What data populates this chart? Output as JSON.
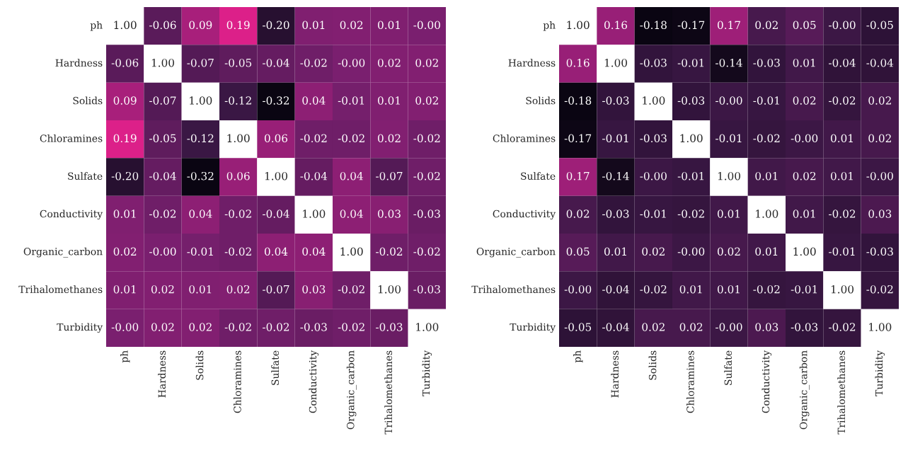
{
  "chart_data": [
    {
      "type": "heatmap",
      "data_labels": true,
      "categories": [
        "ph",
        "Hardness",
        "Solids",
        "Chloramines",
        "Sulfate",
        "Conductivity",
        "Organic_carbon",
        "Trihalomethanes",
        "Turbidity"
      ],
      "y_categories": [
        "ph",
        "Hardness",
        "Solids",
        "Chloramines",
        "Sulfate",
        "Conductivity",
        "Organic_carbon",
        "Trihalomethanes",
        "Turbidity"
      ],
      "cells": [
        [
          1.0,
          -0.06,
          0.09,
          0.19,
          -0.2,
          0.01,
          0.02,
          0.01,
          -0.0
        ],
        [
          -0.06,
          1.0,
          -0.07,
          -0.05,
          -0.04,
          -0.02,
          -0.0,
          0.02,
          0.02
        ],
        [
          0.09,
          -0.07,
          1.0,
          -0.12,
          -0.32,
          0.04,
          -0.01,
          0.01,
          0.02
        ],
        [
          0.19,
          -0.05,
          -0.12,
          1.0,
          0.06,
          -0.02,
          -0.02,
          0.02,
          -0.02
        ],
        [
          -0.2,
          -0.04,
          -0.32,
          0.06,
          1.0,
          -0.04,
          0.04,
          -0.07,
          -0.02
        ],
        [
          0.01,
          -0.02,
          0.04,
          -0.02,
          -0.04,
          1.0,
          0.04,
          0.03,
          -0.03
        ],
        [
          0.02,
          -0.0,
          -0.01,
          -0.02,
          0.04,
          0.04,
          1.0,
          -0.02,
          -0.02
        ],
        [
          0.01,
          0.02,
          0.01,
          0.02,
          -0.07,
          0.03,
          -0.02,
          1.0,
          -0.03
        ],
        [
          -0.0,
          0.02,
          0.02,
          -0.02,
          -0.02,
          -0.03,
          -0.02,
          -0.03,
          1.0
        ]
      ],
      "cell_labels": [
        [
          "1.00",
          "-0.06",
          "0.09",
          "0.19",
          "-0.20",
          "0.01",
          "0.02",
          "0.01",
          "-0.00"
        ],
        [
          "-0.06",
          "1.00",
          "-0.07",
          "-0.05",
          "-0.04",
          "-0.02",
          "-0.00",
          "0.02",
          "0.02"
        ],
        [
          "0.09",
          "-0.07",
          "1.00",
          "-0.12",
          "-0.32",
          "0.04",
          "-0.01",
          "0.01",
          "0.02"
        ],
        [
          "0.19",
          "-0.05",
          "-0.12",
          "1.00",
          "0.06",
          "-0.02",
          "-0.02",
          "0.02",
          "-0.02"
        ],
        [
          "-0.20",
          "-0.04",
          "-0.32",
          "0.06",
          "1.00",
          "-0.04",
          "0.04",
          "-0.07",
          "-0.02"
        ],
        [
          "0.01",
          "-0.02",
          "0.04",
          "-0.02",
          "-0.04",
          "1.00",
          "0.04",
          "0.03",
          "-0.03"
        ],
        [
          "0.02",
          "-0.00",
          "-0.01",
          "-0.02",
          "0.04",
          "0.04",
          "1.00",
          "-0.02",
          "-0.02"
        ],
        [
          "0.01",
          "0.02",
          "0.01",
          "0.02",
          "-0.07",
          "0.03",
          "-0.02",
          "1.00",
          "-0.03"
        ],
        [
          "-0.00",
          "0.02",
          "0.02",
          "-0.02",
          "-0.02",
          "-0.03",
          "-0.02",
          "-0.03",
          "1.00"
        ]
      ]
    },
    {
      "type": "heatmap",
      "data_labels": true,
      "categories": [
        "ph",
        "Hardness",
        "Solids",
        "Chloramines",
        "Sulfate",
        "Conductivity",
        "Organic_carbon",
        "Trihalomethanes",
        "Turbidity"
      ],
      "y_categories": [
        "ph",
        "Hardness",
        "Solids",
        "Chloramines",
        "Sulfate",
        "Conductivity",
        "Organic_carbon",
        "Trihalomethanes",
        "Turbidity"
      ],
      "cells": [
        [
          1.0,
          0.16,
          -0.18,
          -0.17,
          0.17,
          0.02,
          0.05,
          -0.0,
          -0.05
        ],
        [
          0.16,
          1.0,
          -0.03,
          -0.01,
          -0.14,
          -0.03,
          0.01,
          -0.04,
          -0.04
        ],
        [
          -0.18,
          -0.03,
          1.0,
          -0.03,
          -0.0,
          -0.01,
          0.02,
          -0.02,
          0.02
        ],
        [
          -0.17,
          -0.01,
          -0.03,
          1.0,
          -0.01,
          -0.02,
          -0.0,
          0.01,
          0.02
        ],
        [
          0.17,
          -0.14,
          -0.0,
          -0.01,
          1.0,
          0.01,
          0.02,
          0.01,
          -0.0
        ],
        [
          0.02,
          -0.03,
          -0.01,
          -0.02,
          0.01,
          1.0,
          0.01,
          -0.02,
          0.03
        ],
        [
          0.05,
          0.01,
          0.02,
          -0.0,
          0.02,
          0.01,
          1.0,
          -0.01,
          -0.03
        ],
        [
          -0.0,
          -0.04,
          -0.02,
          0.01,
          0.01,
          -0.02,
          -0.01,
          1.0,
          -0.02
        ],
        [
          -0.05,
          -0.04,
          0.02,
          0.02,
          -0.0,
          0.03,
          -0.03,
          -0.02,
          1.0
        ]
      ],
      "cell_labels": [
        [
          "1.00",
          "0.16",
          "-0.18",
          "-0.17",
          "0.17",
          "0.02",
          "0.05",
          "-0.00",
          "-0.05"
        ],
        [
          "0.16",
          "1.00",
          "-0.03",
          "-0.01",
          "-0.14",
          "-0.03",
          "0.01",
          "-0.04",
          "-0.04"
        ],
        [
          "-0.18",
          "-0.03",
          "1.00",
          "-0.03",
          "-0.00",
          "-0.01",
          "0.02",
          "-0.02",
          "0.02"
        ],
        [
          "-0.17",
          "-0.01",
          "-0.03",
          "1.00",
          "-0.01",
          "-0.02",
          "-0.00",
          "0.01",
          "0.02"
        ],
        [
          "0.17",
          "-0.14",
          "-0.00",
          "-0.01",
          "1.00",
          "0.01",
          "0.02",
          "0.01",
          "-0.00"
        ],
        [
          "0.02",
          "-0.03",
          "-0.01",
          "-0.02",
          "0.01",
          "1.00",
          "0.01",
          "-0.02",
          "0.03"
        ],
        [
          "0.05",
          "0.01",
          "0.02",
          "-0.00",
          "0.02",
          "0.01",
          "1.00",
          "-0.01",
          "-0.03"
        ],
        [
          "-0.00",
          "-0.04",
          "-0.02",
          "0.01",
          "0.01",
          "-0.02",
          "-0.01",
          "1.00",
          "-0.02"
        ],
        [
          "-0.05",
          "-0.04",
          "0.02",
          "0.02",
          "-0.00",
          "0.03",
          "-0.03",
          "-0.02",
          "1.00"
        ]
      ]
    }
  ]
}
